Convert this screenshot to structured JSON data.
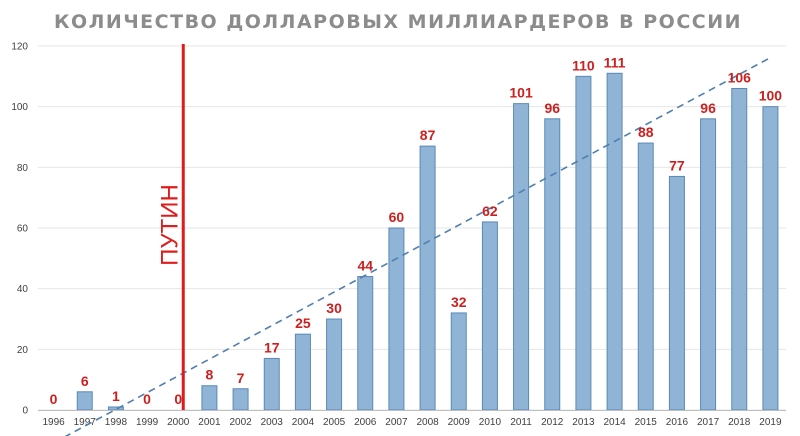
{
  "chart_data": {
    "type": "bar",
    "title": "КОЛИЧЕСТВО ДОЛЛАРОВЫХ МИЛЛИАРДЕРОВ В РОССИИ",
    "categories": [
      "1996",
      "1997",
      "1998",
      "1999",
      "2000",
      "2001",
      "2002",
      "2003",
      "2004",
      "2005",
      "2006",
      "2007",
      "2008",
      "2009",
      "2010",
      "2011",
      "2012",
      "2013",
      "2014",
      "2015",
      "2016",
      "2017",
      "2018",
      "2019"
    ],
    "values": [
      0,
      6,
      1,
      0,
      0,
      8,
      7,
      17,
      25,
      30,
      44,
      60,
      87,
      32,
      62,
      101,
      96,
      110,
      111,
      88,
      77,
      96,
      106,
      100
    ],
    "data_labels": [
      "0",
      "6",
      "1",
      "0",
      "0",
      "8",
      "7",
      "17",
      "25",
      "30",
      "44",
      "60",
      "87",
      "32",
      "62",
      "101",
      "96",
      "110",
      "111",
      "88",
      "77",
      "96",
      "106",
      "100"
    ],
    "xlabel": "",
    "ylabel": "",
    "ylim": [
      0,
      120
    ],
    "yticks": [
      0,
      20,
      40,
      60,
      80,
      100,
      120
    ],
    "grid": true,
    "trendline": {
      "type": "linear",
      "style": "dashed"
    },
    "annotation": {
      "text": "ПУТИН",
      "at_category": "2000"
    },
    "colors": {
      "bar_fill": "#8fb4d6",
      "bar_stroke": "#5b89b5",
      "data_label": "#cc1f1f",
      "annotation_line": "#e01b1b",
      "trendline": "#4f7fae",
      "grid": "#e6e6e6",
      "title": "#8c8c8c"
    }
  }
}
